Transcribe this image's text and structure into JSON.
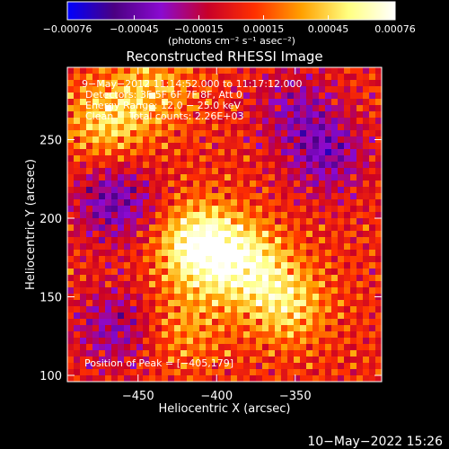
{
  "chart_data": {
    "type": "heatmap",
    "title": "Reconstructed RHESSI Image",
    "xlabel": "Heliocentric X (arcsec)",
    "ylabel": "Heliocentric Y (arcsec)",
    "xlim": [
      -495,
      -295
    ],
    "ylim": [
      96,
      296
    ],
    "x_ticks": [
      -450,
      -400,
      -350
    ],
    "x_tick_labels": [
      "−450",
      "−400",
      "−350"
    ],
    "y_ticks": [
      100,
      150,
      200,
      250
    ],
    "y_tick_labels": [
      "100",
      "150",
      "200",
      "250"
    ],
    "colorbar": {
      "range": [
        -0.00076,
        0.00076
      ],
      "ticks": [
        -0.00076,
        -0.00045,
        -0.00015,
        0.00015,
        0.00045,
        0.00076
      ],
      "tick_labels": [
        "−0.00076",
        "−0.00045",
        "−0.00015",
        "0.00015",
        "0.00045",
        "0.00076"
      ],
      "units": "(photons cm⁻² s⁻¹ asec⁻²)",
      "colormap": [
        "#0000ff",
        "#4b0082",
        "#8a0ad0",
        "#c80028",
        "#ff3000",
        "#ffa000",
        "#ffff80",
        "#ffffff"
      ]
    },
    "annotations": [
      "9−May−2012 11:14:52.000 to 11:17:12.000",
      "Detectors: 3F 5F 6F 7F 8F, Att 0",
      "Energy Range: 12.0 − 25.0 keV",
      "Clean     Total counts: 2.26E+03"
    ],
    "peak_label": "Position of Peak = [−405,179]",
    "peak": [
      -405,
      179
    ],
    "bright_sources": [
      {
        "x": -410,
        "y": 182,
        "value": 0.00076
      },
      {
        "x": -380,
        "y": 170,
        "value": 0.0005
      },
      {
        "x": -355,
        "y": 145,
        "value": 0.00042
      },
      {
        "x": -470,
        "y": 262,
        "value": 0.0004
      },
      {
        "x": -440,
        "y": 282,
        "value": 0.0003
      },
      {
        "x": -420,
        "y": 130,
        "value": 0.00025
      }
    ],
    "dim_regions": [
      {
        "x": -465,
        "y": 210,
        "value": -0.00045
      },
      {
        "x": -465,
        "y": 130,
        "value": -0.00035
      },
      {
        "x": -330,
        "y": 240,
        "value": -0.0004
      },
      {
        "x": -350,
        "y": 270,
        "value": -0.0003
      }
    ]
  },
  "footer_date": "10−May−2022 15:26"
}
